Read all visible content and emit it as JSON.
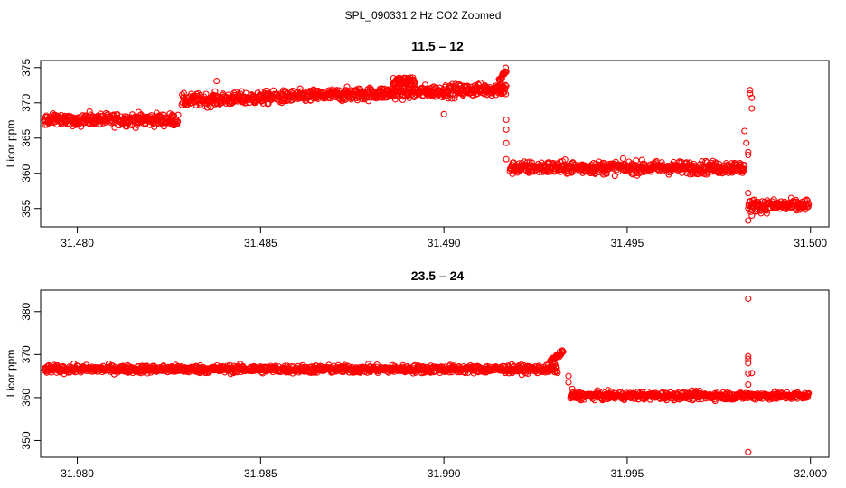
{
  "figure_title": "SPL_090331  2 Hz CO2 Zoomed",
  "chart_data": [
    {
      "type": "scatter",
      "title": "11.5 – 12",
      "xlabel": "",
      "ylabel": "Licor ppm",
      "xlim": [
        31.479,
        31.5005
      ],
      "ylim": [
        352.4,
        376
      ],
      "xticks": [
        "31.480",
        "31.485",
        "31.490",
        "31.495",
        "31.500"
      ],
      "yticks": [
        "355",
        "360",
        "365",
        "370",
        "375"
      ],
      "grid": false,
      "marker_color": "#ff0000",
      "segments": [
        {
          "x": [
            31.4791,
            31.48275
          ],
          "y": [
            367.6,
            367.6
          ],
          "noise": 0.8
        },
        {
          "x": [
            31.48285,
            31.4917
          ],
          "y": [
            370.3,
            372.0
          ],
          "noise": 0.8
        },
        {
          "x": [
            31.4886,
            31.4892
          ],
          "y": [
            373.0,
            373.1
          ],
          "noise": 0.6
        },
        {
          "x": [
            31.4915,
            31.4917
          ],
          "y": [
            373.0,
            374.6
          ],
          "noise": 0.5
        },
        {
          "x": [
            31.4918,
            31.4982
          ],
          "y": [
            360.8,
            360.8
          ],
          "noise": 0.8
        },
        {
          "x": [
            31.4983,
            31.49995
          ],
          "y": [
            355.4,
            355.4
          ],
          "noise": 0.8
        }
      ],
      "outliers": [
        {
          "x": 31.4917,
          "y": 366.2
        },
        {
          "x": 31.4917,
          "y": 367.6
        },
        {
          "x": 31.4917,
          "y": 364.3
        },
        {
          "x": 31.4917,
          "y": 362.0
        },
        {
          "x": 31.49,
          "y": 368.4
        },
        {
          "x": 31.4838,
          "y": 373.1
        },
        {
          "x": 31.4982,
          "y": 366.0
        },
        {
          "x": 31.49825,
          "y": 364.3
        },
        {
          "x": 31.4983,
          "y": 362.6
        },
        {
          "x": 31.49835,
          "y": 371.8
        },
        {
          "x": 31.49835,
          "y": 371.3
        },
        {
          "x": 31.4984,
          "y": 370.7
        },
        {
          "x": 31.4984,
          "y": 369.2
        },
        {
          "x": 31.4983,
          "y": 363.0
        },
        {
          "x": 31.4983,
          "y": 357.2
        },
        {
          "x": 31.4983,
          "y": 353.3
        },
        {
          "x": 31.4984,
          "y": 354.0
        }
      ]
    },
    {
      "type": "scatter",
      "title": "23.5 – 24",
      "xlabel": "",
      "ylabel": "Licor ppm",
      "xlim": [
        31.979,
        32.0005
      ],
      "ylim": [
        346.1,
        385
      ],
      "xticks": [
        "31.980",
        "31.985",
        "31.990",
        "31.995",
        "32.000"
      ],
      "yticks": [
        "350",
        "360",
        "370",
        "380"
      ],
      "grid": false,
      "marker_color": "#ff0000",
      "segments": [
        {
          "x": [
            31.9791,
            31.9931
          ],
          "y": [
            366.6,
            366.6
          ],
          "noise": 0.8
        },
        {
          "x": [
            31.9929,
            31.99325
          ],
          "y": [
            368.5,
            370.5
          ],
          "noise": 0.5
        },
        {
          "x": [
            31.99345,
            31.99995
          ],
          "y": [
            360.4,
            360.4
          ],
          "noise": 0.8
        }
      ],
      "outliers": [
        {
          "x": 31.9934,
          "y": 365.0
        },
        {
          "x": 31.9934,
          "y": 363.5
        },
        {
          "x": 31.9935,
          "y": 362.0
        },
        {
          "x": 31.9983,
          "y": 383.0
        },
        {
          "x": 31.9983,
          "y": 347.3
        },
        {
          "x": 31.9983,
          "y": 369.6
        },
        {
          "x": 31.9983,
          "y": 369.0
        },
        {
          "x": 31.9983,
          "y": 368.0
        },
        {
          "x": 31.9983,
          "y": 365.6
        },
        {
          "x": 31.9984,
          "y": 365.7
        },
        {
          "x": 31.9983,
          "y": 363.0
        }
      ]
    }
  ]
}
